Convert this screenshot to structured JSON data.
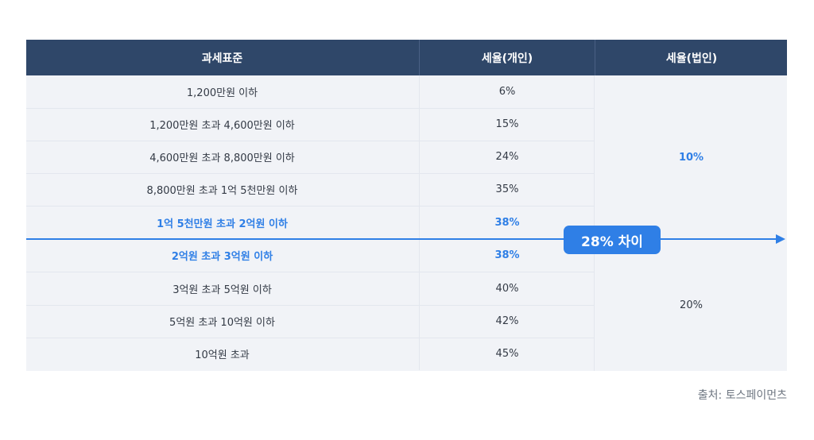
{
  "table": {
    "headers": {
      "bracket": "과세표준",
      "individual_rate": "세율(개인)",
      "corporate_rate": "세율(법인)"
    },
    "rows": [
      {
        "bracket": "1,200만원 이하",
        "individual_rate": "6%"
      },
      {
        "bracket": "1,200만원 초과 4,600만원 이하",
        "individual_rate": "15%"
      },
      {
        "bracket": "4,600만원 초과 8,800만원 이하",
        "individual_rate": "24%"
      },
      {
        "bracket": "8,800만원 초과 1억 5천만원 이하",
        "individual_rate": "35%"
      },
      {
        "bracket": "1억 5천만원 초과 2억원 이하",
        "individual_rate": "38%"
      },
      {
        "bracket": "2억원 초과 3억원 이하",
        "individual_rate": "38%"
      },
      {
        "bracket": "3억원 초과 5억원 이하",
        "individual_rate": "40%"
      },
      {
        "bracket": "5억원 초과 10억원 이하",
        "individual_rate": "42%"
      },
      {
        "bracket": "10억원 초과",
        "individual_rate": "45%"
      }
    ],
    "corporate_rates": {
      "upper": "10%",
      "lower": "20%"
    }
  },
  "highlight": {
    "label": "28% 차이",
    "color": "#2f7fe6"
  },
  "colors": {
    "header_bg": "#2f4769",
    "body_bg": "#f1f3f7",
    "accent": "#2f7fe6"
  },
  "source": "출처: 토스페이먼츠"
}
